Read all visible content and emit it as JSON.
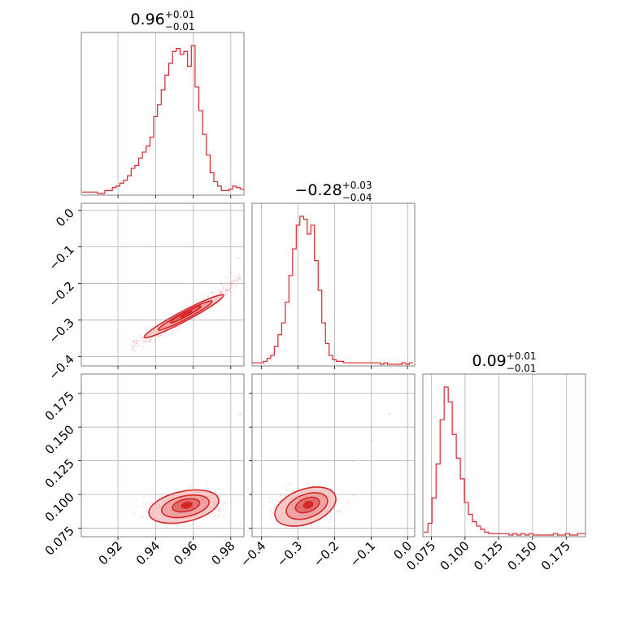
{
  "colors": {
    "series": "#d62728",
    "grid": "#b0b0b0",
    "frame": "#808080",
    "fill": "#f6c9c9"
  },
  "titles": {
    "p1": {
      "main": "0.96",
      "plus": "+0.01",
      "minus": "−0.01"
    },
    "p2": {
      "main": "−0.28",
      "plus": "+0.03",
      "minus": "−0.04"
    },
    "p3": {
      "main": "0.09",
      "plus": "+0.01",
      "minus": "−0.01"
    }
  },
  "ticks": {
    "p1": [
      {
        "value": 0.92,
        "label": "0.92"
      },
      {
        "value": 0.94,
        "label": "0.94"
      },
      {
        "value": 0.96,
        "label": "0.96"
      },
      {
        "value": 0.98,
        "label": "0.98"
      }
    ],
    "p2": [
      {
        "value": -0.4,
        "label": "−0.4"
      },
      {
        "value": -0.3,
        "label": "−0.3"
      },
      {
        "value": -0.2,
        "label": "−0.2"
      },
      {
        "value": -0.1,
        "label": "−0.1"
      },
      {
        "value": 0.0,
        "label": "0.0"
      }
    ],
    "p3": [
      {
        "value": 0.075,
        "label": "0.075"
      },
      {
        "value": 0.1,
        "label": "0.100"
      },
      {
        "value": 0.125,
        "label": "0.125"
      },
      {
        "value": 0.15,
        "label": "0.150"
      },
      {
        "value": 0.175,
        "label": "0.175"
      }
    ]
  },
  "chart_data": {
    "type": "corner",
    "parameters": [
      "p1",
      "p2",
      "p3"
    ],
    "ranges": {
      "p1": [
        0.9005,
        0.987
      ],
      "p2": [
        -0.426,
        0.0195
      ],
      "p3": [
        0.0687,
        0.1893
      ]
    },
    "grid": true,
    "summaries": [
      {
        "parameter": "p1",
        "median": 0.96,
        "plus": 0.01,
        "minus": 0.01
      },
      {
        "parameter": "p2",
        "median": -0.28,
        "plus": 0.03,
        "minus": 0.04
      },
      {
        "parameter": "p3",
        "median": 0.09,
        "plus": 0.01,
        "minus": 0.01
      }
    ],
    "histograms": [
      {
        "parameter": "p1",
        "x": [
          0.902,
          0.904,
          0.906,
          0.908,
          0.91,
          0.912,
          0.914,
          0.916,
          0.918,
          0.92,
          0.922,
          0.924,
          0.926,
          0.928,
          0.93,
          0.932,
          0.934,
          0.936,
          0.938,
          0.94,
          0.942,
          0.944,
          0.946,
          0.948,
          0.95,
          0.952,
          0.954,
          0.956,
          0.958,
          0.96,
          0.962,
          0.964,
          0.966,
          0.968,
          0.97,
          0.972,
          0.974,
          0.976,
          0.978,
          0.98,
          0.982,
          0.984,
          0.986
        ],
        "counts": [
          1,
          1,
          1,
          1,
          0,
          0,
          2,
          2,
          4,
          5,
          7,
          9,
          12,
          17,
          19,
          24,
          28,
          32,
          38,
          52,
          60,
          70,
          80,
          88,
          96,
          98,
          94,
          96,
          86,
          100,
          72,
          56,
          40,
          26,
          14,
          8,
          5,
          2,
          2,
          3,
          5,
          4,
          3
        ]
      },
      {
        "parameter": "p2",
        "x": [
          -0.42,
          -0.41,
          -0.4,
          -0.39,
          -0.38,
          -0.37,
          -0.36,
          -0.35,
          -0.34,
          -0.33,
          -0.32,
          -0.31,
          -0.3,
          -0.29,
          -0.28,
          -0.27,
          -0.26,
          -0.25,
          -0.24,
          -0.23,
          -0.22,
          -0.21,
          -0.2,
          -0.19,
          -0.18,
          -0.17,
          -0.16,
          -0.15,
          -0.14,
          -0.13,
          -0.12,
          -0.11,
          -0.1,
          -0.09,
          -0.08,
          -0.07,
          -0.06,
          -0.05,
          -0.04,
          -0.03,
          -0.02,
          -0.01,
          0.0,
          0.01
        ],
        "counts": [
          1,
          1,
          1,
          2,
          4,
          6,
          12,
          20,
          28,
          42,
          60,
          78,
          94,
          100,
          98,
          88,
          94,
          70,
          50,
          28,
          14,
          6,
          3,
          2,
          2,
          1,
          1,
          1,
          1,
          1,
          1,
          1,
          1,
          1,
          1,
          0,
          1,
          0,
          0,
          0,
          0,
          1,
          0,
          1
        ]
      },
      {
        "parameter": "p3",
        "x": [
          0.071,
          0.074,
          0.077,
          0.08,
          0.083,
          0.086,
          0.089,
          0.092,
          0.095,
          0.098,
          0.101,
          0.104,
          0.107,
          0.11,
          0.113,
          0.116,
          0.119,
          0.122,
          0.125,
          0.128,
          0.131,
          0.134,
          0.137,
          0.14,
          0.143,
          0.146,
          0.149,
          0.152,
          0.155,
          0.158,
          0.161,
          0.164,
          0.167,
          0.17,
          0.173,
          0.176,
          0.179,
          0.182,
          0.185,
          0.188
        ],
        "counts": [
          2,
          8,
          25,
          48,
          78,
          100,
          90,
          68,
          52,
          38,
          22,
          14,
          9,
          6,
          4,
          2,
          1,
          1,
          1,
          1,
          1,
          0,
          1,
          0,
          1,
          0,
          1,
          0,
          0,
          0,
          0,
          0,
          1,
          0,
          0,
          1,
          0,
          0,
          1,
          1
        ]
      }
    ],
    "joint": [
      {
        "x": "p1",
        "y": "p2",
        "relation": "positive",
        "points_sample": [
          [
            0.928,
            -0.38
          ],
          [
            0.935,
            -0.36
          ],
          [
            0.94,
            -0.34
          ],
          [
            0.945,
            -0.32
          ],
          [
            0.95,
            -0.305
          ],
          [
            0.955,
            -0.29
          ],
          [
            0.96,
            -0.27
          ],
          [
            0.965,
            -0.25
          ],
          [
            0.97,
            -0.225
          ],
          [
            0.975,
            -0.2
          ],
          [
            0.98,
            -0.17
          ],
          [
            0.984,
            -0.13
          ]
        ]
      },
      {
        "x": "p1",
        "y": "p3",
        "points_sample": [
          [
            0.94,
            0.093
          ],
          [
            0.95,
            0.088
          ],
          [
            0.955,
            0.092
          ],
          [
            0.96,
            0.09
          ],
          [
            0.965,
            0.096
          ],
          [
            0.97,
            0.1
          ],
          [
            0.98,
            0.125
          ],
          [
            0.985,
            0.16
          ]
        ]
      },
      {
        "x": "p2",
        "y": "p3",
        "points_sample": [
          [
            -0.35,
            0.095
          ],
          [
            -0.3,
            0.09
          ],
          [
            -0.28,
            0.088
          ],
          [
            -0.26,
            0.093
          ],
          [
            -0.23,
            0.099
          ],
          [
            -0.15,
            0.125
          ],
          [
            -0.1,
            0.14
          ],
          [
            -0.05,
            0.16
          ]
        ]
      }
    ]
  }
}
